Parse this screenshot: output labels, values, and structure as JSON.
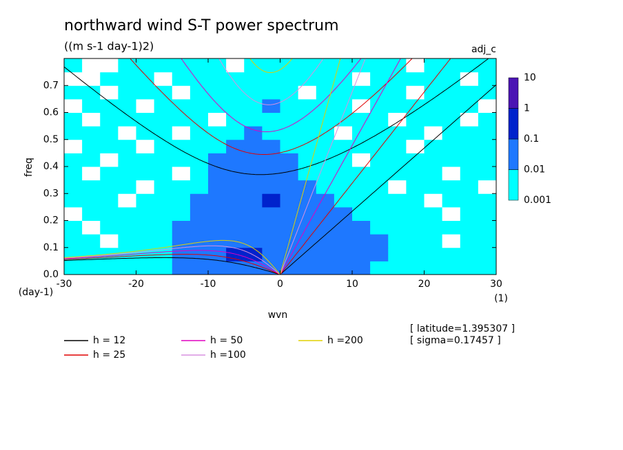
{
  "chart_data": {
    "type": "contour",
    "title": "northward wind S-T power spectrum",
    "subtitle": "((m s-1 day-1)2)",
    "corner_label": "adj_c",
    "xlabel": "wvn",
    "ylabel": "freq",
    "x_unit": "(1)",
    "y_unit": "(day-1)",
    "xlim": [
      -30,
      30
    ],
    "ylim": [
      0,
      0.8
    ],
    "xticks": [
      -30,
      -20,
      -10,
      0,
      10,
      20,
      30
    ],
    "yticks": [
      {
        "value": 0,
        "label": "0.0"
      },
      0.1,
      0.2,
      0.3,
      0.4,
      0.5,
      0.6,
      0.7
    ],
    "levels": [
      0.001,
      0.01,
      0.1,
      1,
      10
    ],
    "colors": [
      "#00ffff",
      "#1e78ff",
      "#0022cc",
      "#4b14b4"
    ],
    "z": [
      [
        0.003,
        0.003,
        0.003,
        0.003,
        0.003,
        0.003,
        0.03,
        0.03,
        0.03,
        0.03,
        0.03,
        0.03,
        0.03,
        0.03,
        0.03,
        0.03,
        0.03,
        0.003,
        0.003,
        0.003,
        0.003,
        0.003,
        0.003,
        0.003
      ],
      [
        0.003,
        0.003,
        0.003,
        0.003,
        0.003,
        0.003,
        0.03,
        0.03,
        0.03,
        0.3,
        0.3,
        0.03,
        0.03,
        0.03,
        0.03,
        0.03,
        0.03,
        0.03,
        0.003,
        0.003,
        0.003,
        0.003,
        0.003,
        0.003
      ],
      [
        0.003,
        0.003,
        0.0005,
        0.003,
        0.003,
        0.003,
        0.03,
        0.03,
        0.03,
        0.03,
        0.03,
        0.03,
        0.03,
        0.03,
        0.03,
        0.03,
        0.03,
        0.03,
        0.003,
        0.003,
        0.003,
        0.0005,
        0.003,
        0.003
      ],
      [
        0.003,
        0.0005,
        0.003,
        0.003,
        0.003,
        0.003,
        0.03,
        0.03,
        0.03,
        0.03,
        0.03,
        0.03,
        0.03,
        0.03,
        0.03,
        0.03,
        0.03,
        0.003,
        0.003,
        0.003,
        0.003,
        0.003,
        0.003,
        0.003
      ],
      [
        0.0005,
        0.003,
        0.003,
        0.003,
        0.003,
        0.003,
        0.003,
        0.03,
        0.03,
        0.03,
        0.03,
        0.03,
        0.03,
        0.03,
        0.03,
        0.03,
        0.003,
        0.003,
        0.003,
        0.003,
        0.003,
        0.0005,
        0.003,
        0.003
      ],
      [
        0.003,
        0.003,
        0.003,
        0.0005,
        0.003,
        0.003,
        0.003,
        0.03,
        0.03,
        0.03,
        0.03,
        0.3,
        0.03,
        0.03,
        0.03,
        0.003,
        0.003,
        0.003,
        0.003,
        0.003,
        0.0005,
        0.003,
        0.003,
        0.003
      ],
      [
        0.003,
        0.003,
        0.003,
        0.003,
        0.0005,
        0.003,
        0.003,
        0.003,
        0.03,
        0.03,
        0.03,
        0.03,
        0.03,
        0.03,
        0.003,
        0.003,
        0.003,
        0.003,
        0.0005,
        0.003,
        0.003,
        0.003,
        0.003,
        0.0005
      ],
      [
        0.003,
        0.0005,
        0.003,
        0.003,
        0.003,
        0.003,
        0.0005,
        0.003,
        0.03,
        0.03,
        0.03,
        0.03,
        0.03,
        0.003,
        0.003,
        0.003,
        0.003,
        0.003,
        0.003,
        0.003,
        0.003,
        0.0005,
        0.003,
        0.003
      ],
      [
        0.003,
        0.003,
        0.0005,
        0.003,
        0.003,
        0.003,
        0.003,
        0.003,
        0.03,
        0.03,
        0.03,
        0.03,
        0.03,
        0.003,
        0.003,
        0.003,
        0.0005,
        0.003,
        0.003,
        0.003,
        0.003,
        0.003,
        0.003,
        0.003
      ],
      [
        0.0005,
        0.003,
        0.003,
        0.003,
        0.0005,
        0.003,
        0.003,
        0.003,
        0.003,
        0.03,
        0.03,
        0.03,
        0.003,
        0.003,
        0.003,
        0.003,
        0.003,
        0.003,
        0.003,
        0.0005,
        0.003,
        0.003,
        0.003,
        0.003
      ],
      [
        0.003,
        0.003,
        0.003,
        0.0005,
        0.003,
        0.003,
        0.0005,
        0.003,
        0.003,
        0.003,
        0.03,
        0.003,
        0.003,
        0.003,
        0.003,
        0.0005,
        0.003,
        0.003,
        0.003,
        0.003,
        0.0005,
        0.003,
        0.003,
        0.003
      ],
      [
        0.003,
        0.0005,
        0.003,
        0.003,
        0.003,
        0.003,
        0.003,
        0.003,
        0.0005,
        0.003,
        0.003,
        0.003,
        0.003,
        0.003,
        0.003,
        0.003,
        0.003,
        0.003,
        0.0005,
        0.003,
        0.003,
        0.003,
        0.0005,
        0.003
      ],
      [
        0.0005,
        0.003,
        0.003,
        0.003,
        0.0005,
        0.003,
        0.003,
        0.003,
        0.003,
        0.003,
        0.003,
        0.03,
        0.003,
        0.003,
        0.003,
        0.003,
        0.0005,
        0.003,
        0.003,
        0.003,
        0.003,
        0.003,
        0.003,
        0.0005
      ],
      [
        0.003,
        0.003,
        0.0005,
        0.003,
        0.003,
        0.003,
        0.0005,
        0.003,
        0.003,
        0.003,
        0.003,
        0.003,
        0.003,
        0.0005,
        0.003,
        0.003,
        0.003,
        0.003,
        0.003,
        0.0005,
        0.003,
        0.003,
        0.003,
        0.003
      ],
      [
        0.0005,
        0.0005,
        0.003,
        0.003,
        0.003,
        0.0005,
        0.003,
        0.003,
        0.003,
        0.003,
        0.003,
        0.003,
        0.003,
        0.003,
        0.003,
        0.003,
        0.0005,
        0.003,
        0.003,
        0.003,
        0.003,
        0.003,
        0.0005,
        0.003
      ],
      [
        0.003,
        0.0005,
        0.0005,
        0.003,
        0.003,
        0.003,
        0.003,
        0.003,
        0.003,
        0.0005,
        0.003,
        0.003,
        0.003,
        0.003,
        0.003,
        0.003,
        0.003,
        0.003,
        0.003,
        0.0005,
        0.003,
        0.003,
        0.003,
        0.003
      ]
    ],
    "series": [
      {
        "name": "h = 12",
        "color": "#000000",
        "h": 12
      },
      {
        "name": "h = 25",
        "color": "#e00000",
        "h": 25
      },
      {
        "name": "h = 50",
        "color": "#e000c0",
        "h": 50
      },
      {
        "name": "h =100",
        "color": "#d890e0",
        "h": 100
      },
      {
        "name": "h =200",
        "color": "#e0d000",
        "h": 200
      }
    ],
    "annotations": [
      "[ latitude=1.395307 ]",
      "[ sigma=0.17457 ]"
    ]
  }
}
